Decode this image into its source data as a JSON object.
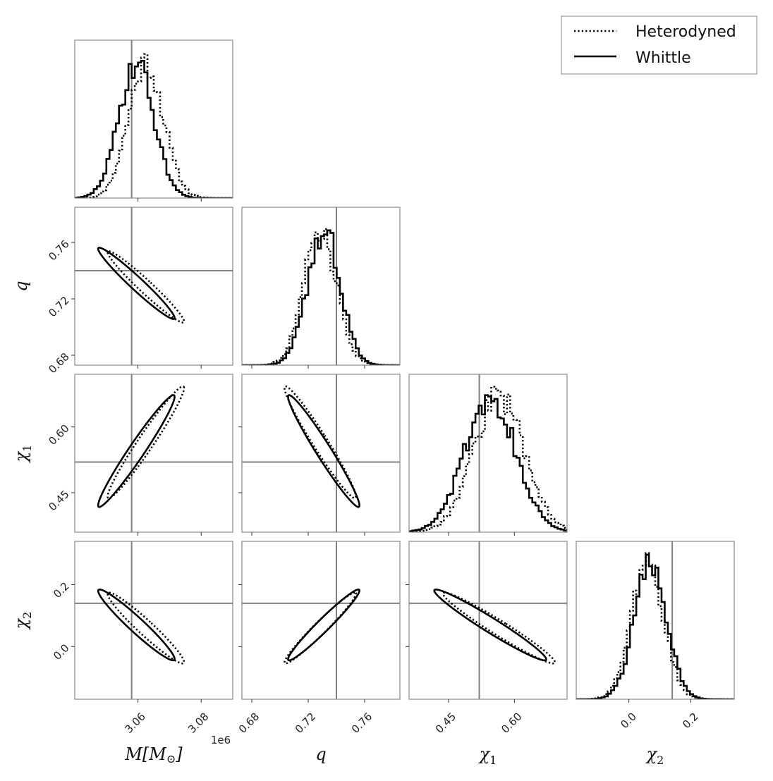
{
  "chart_data": {
    "type": "corner",
    "parameters": [
      {
        "key": "M",
        "label_main": "M[M",
        "label_sub": "⊙",
        "label_end": "]",
        "range": [
          3.04,
          3.09
        ],
        "truth": 3.058,
        "ticks": [
          3.06,
          3.08
        ],
        "tick_labels": [
          "3.06",
          "3.08"
        ],
        "offset_text": "1e6"
      },
      {
        "key": "q",
        "label_main": "q",
        "label_sub": "",
        "label_end": "",
        "range": [
          0.673,
          0.785
        ],
        "truth": 0.74,
        "ticks": [
          0.68,
          0.72,
          0.76
        ],
        "tick_labels": [
          "0.68",
          "0.72",
          "0.76"
        ],
        "offset_text": ""
      },
      {
        "key": "chi1",
        "label_main": "χ",
        "label_sub": "1",
        "label_end": "",
        "range": [
          0.36,
          0.72
        ],
        "truth": 0.52,
        "ticks": [
          0.45,
          0.6
        ],
        "tick_labels": [
          "0.45",
          "0.60"
        ],
        "offset_text": ""
      },
      {
        "key": "chi2",
        "label_main": "χ",
        "label_sub": "2",
        "label_end": "",
        "range": [
          -0.17,
          0.34
        ],
        "truth": 0.14,
        "ticks": [
          0.0,
          0.2
        ],
        "tick_labels": [
          "0.0",
          "0.2"
        ],
        "offset_text": ""
      }
    ],
    "series": [
      {
        "name": "Heterodyned",
        "style": "dotted",
        "means": [
          3.0625,
          0.7285,
          0.565,
          0.06
        ],
        "sigmas": [
          0.0055,
          0.0115,
          0.058,
          0.052
        ],
        "correlations": {
          "0-1": -0.97,
          "0-2": 0.97,
          "0-3": -0.96,
          "1-2": -0.97,
          "1-3": 0.97,
          "2-3": -0.97
        }
      },
      {
        "name": "Whittle",
        "style": "solid",
        "means": [
          3.0595,
          0.731,
          0.545,
          0.07
        ],
        "sigmas": [
          0.0055,
          0.0115,
          0.058,
          0.052
        ],
        "correlations": {
          "0-1": -0.97,
          "0-2": 0.97,
          "0-3": -0.96,
          "1-2": -0.97,
          "1-3": 0.97,
          "2-3": -0.97
        }
      }
    ],
    "legend": {
      "position": "top-right",
      "entries": [
        "Heterodyned",
        "Whittle"
      ]
    }
  }
}
